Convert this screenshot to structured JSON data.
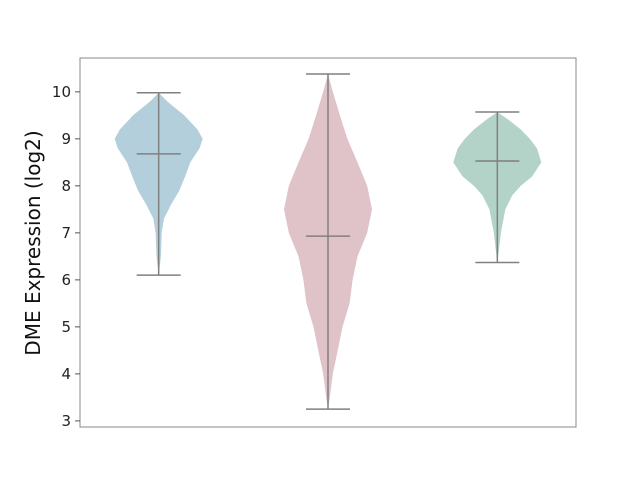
{
  "chart_data": {
    "type": "violin",
    "title": "",
    "xlabel": "",
    "ylabel": "DME Expression (log2)",
    "ylim": [
      2.87,
      10.72
    ],
    "yticks": [
      3,
      4,
      5,
      6,
      7,
      8,
      9,
      10
    ],
    "grid": false,
    "series": [
      {
        "color": "#b4cfdc",
        "min": 6.1,
        "max": 9.98,
        "median": 8.68,
        "density": [
          [
            9.98,
            0
          ],
          [
            9.8,
            0.19
          ],
          [
            9.5,
            0.58
          ],
          [
            9.2,
            0.88
          ],
          [
            9.0,
            1.0
          ],
          [
            8.8,
            0.93
          ],
          [
            8.5,
            0.72
          ],
          [
            8.2,
            0.6
          ],
          [
            7.9,
            0.47
          ],
          [
            7.6,
            0.28
          ],
          [
            7.3,
            0.12
          ],
          [
            7.0,
            0.07
          ],
          [
            6.5,
            0.05
          ],
          [
            6.1,
            0
          ]
        ]
      },
      {
        "color": "#e0c3c9",
        "min": 3.25,
        "max": 10.38,
        "median": 6.93,
        "density": [
          [
            10.38,
            0
          ],
          [
            10.0,
            0.11
          ],
          [
            9.5,
            0.27
          ],
          [
            9.0,
            0.44
          ],
          [
            8.5,
            0.67
          ],
          [
            8.0,
            0.89
          ],
          [
            7.5,
            1.0
          ],
          [
            7.0,
            0.89
          ],
          [
            6.5,
            0.67
          ],
          [
            6.0,
            0.56
          ],
          [
            5.5,
            0.49
          ],
          [
            5.0,
            0.33
          ],
          [
            4.5,
            0.22
          ],
          [
            4.0,
            0.11
          ],
          [
            3.5,
            0.04
          ],
          [
            3.25,
            0
          ]
        ]
      },
      {
        "color": "#b3d3c8",
        "min": 6.37,
        "max": 9.57,
        "median": 8.53,
        "density": [
          [
            9.57,
            0
          ],
          [
            9.4,
            0.26
          ],
          [
            9.2,
            0.53
          ],
          [
            9.0,
            0.74
          ],
          [
            8.8,
            0.9
          ],
          [
            8.5,
            1.0
          ],
          [
            8.2,
            0.79
          ],
          [
            8.0,
            0.53
          ],
          [
            7.8,
            0.34
          ],
          [
            7.5,
            0.18
          ],
          [
            7.0,
            0.08
          ],
          [
            6.6,
            0.03
          ],
          [
            6.37,
            0
          ]
        ]
      }
    ]
  }
}
